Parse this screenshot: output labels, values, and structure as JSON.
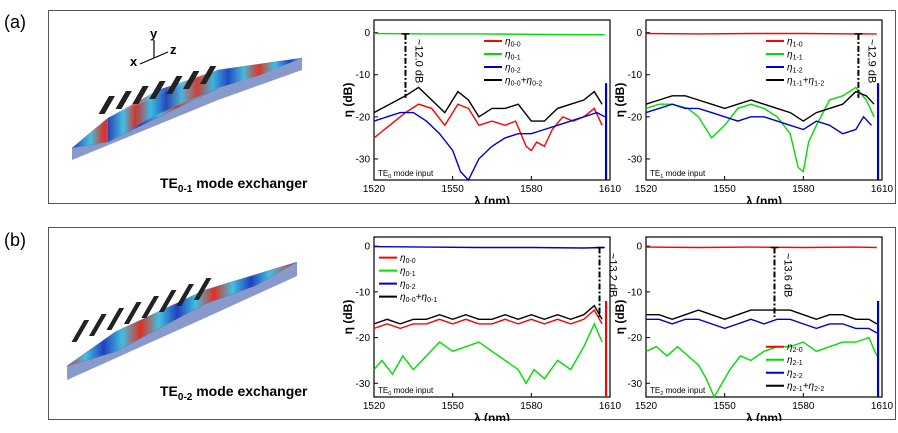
{
  "panels": [
    {
      "label": "(a)",
      "device_title": {
        "pre": "TE",
        "sub": "0-1",
        "post": " mode exchanger"
      }
    },
    {
      "label": "(b)",
      "device_title": {
        "pre": "TE",
        "sub": "0-2",
        "post": " mode exchanger"
      }
    }
  ],
  "axis_glyphs": {
    "x": "x",
    "y": "y",
    "z": "z"
  },
  "chart_data": [
    {
      "id": "a1",
      "type": "line",
      "xlabel": "λ (nm)",
      "ylabel": "η (dB)",
      "xlim": [
        1520,
        1610
      ],
      "ylim": [
        -35,
        3
      ],
      "xticks": [
        1520,
        1550,
        1580,
        1610
      ],
      "yticks": [
        0,
        -10,
        -20,
        -30
      ],
      "input_note": {
        "pre": "TE",
        "sub": "0",
        "post": " mode input"
      },
      "annotation": {
        "text": "~12.0 dB",
        "x": 1532
      },
      "legend": [
        {
          "name": "η",
          "sub": "0-0",
          "color": "#ff0000"
        },
        {
          "name": "η",
          "sub": "0-1",
          "color": "#00dd00"
        },
        {
          "name": "η",
          "sub": "0-2",
          "color": "#0000cc"
        },
        {
          "name": "η",
          "sub": "0-0",
          "plus": "+η",
          "sub2": "0-2",
          "color": "#000000"
        }
      ],
      "series": [
        {
          "color": "#00dd00",
          "x": [
            1520,
            1540,
            1560,
            1580,
            1600,
            1608
          ],
          "y": [
            -0.2,
            -0.3,
            -0.3,
            -0.4,
            -0.5,
            -0.5
          ]
        },
        {
          "color": "#ff0000",
          "x": [
            1520,
            1526,
            1532,
            1537,
            1542,
            1547,
            1552,
            1556,
            1560,
            1565,
            1570,
            1574,
            1578,
            1580,
            1582,
            1585,
            1588,
            1592,
            1596,
            1600,
            1604,
            1607
          ],
          "y": [
            -25,
            -22,
            -19,
            -17,
            -18,
            -22,
            -17,
            -18,
            -22,
            -21,
            -22,
            -21,
            -27,
            -28,
            -26,
            -27,
            -23,
            -20,
            -21,
            -20,
            -18,
            -22
          ]
        },
        {
          "color": "#0000cc",
          "x": [
            1520,
            1525,
            1530,
            1535,
            1540,
            1545,
            1550,
            1553,
            1556,
            1560,
            1565,
            1570,
            1575,
            1580,
            1585,
            1590,
            1595,
            1600,
            1605,
            1608
          ],
          "y": [
            -21,
            -20,
            -19,
            -19,
            -21,
            -24,
            -28,
            -33,
            -35,
            -30,
            -27,
            -25,
            -24,
            -24,
            -23,
            -22,
            -21,
            -20,
            -19,
            -20
          ]
        },
        {
          "color": "#000000",
          "x": [
            1520,
            1526,
            1532,
            1537,
            1542,
            1547,
            1552,
            1556,
            1560,
            1565,
            1570,
            1575,
            1580,
            1585,
            1590,
            1595,
            1600,
            1604,
            1607
          ],
          "y": [
            -19,
            -17,
            -15,
            -13,
            -16,
            -19,
            -14,
            -16,
            -20,
            -18,
            -18,
            -17,
            -21,
            -21,
            -18,
            -17,
            -16,
            -14,
            -17
          ]
        }
      ]
    },
    {
      "id": "a2",
      "type": "line",
      "xlabel": "λ (nm)",
      "ylabel": "η (dB)",
      "xlim": [
        1520,
        1610
      ],
      "ylim": [
        -35,
        3
      ],
      "xticks": [
        1520,
        1550,
        1580,
        1610
      ],
      "yticks": [
        0,
        -10,
        -20,
        -30
      ],
      "input_note": {
        "pre": "TE",
        "sub": "1",
        "post": " mode input"
      },
      "annotation": {
        "text": "~12.9 dB",
        "x": 1601
      },
      "legend": [
        {
          "name": "η",
          "sub": "1-0",
          "color": "#ff0000"
        },
        {
          "name": "η",
          "sub": "1-1",
          "color": "#00dd00"
        },
        {
          "name": "η",
          "sub": "1-2",
          "color": "#0000cc"
        },
        {
          "name": "η",
          "sub": "1-1",
          "plus": "+η",
          "sub2": "1-2",
          "color": "#000000"
        }
      ],
      "series": [
        {
          "color": "#ff0000",
          "x": [
            1520,
            1540,
            1560,
            1580,
            1600,
            1608
          ],
          "y": [
            -0.2,
            -0.3,
            -0.2,
            -0.2,
            -0.3,
            -0.3
          ]
        },
        {
          "color": "#00dd00",
          "x": [
            1520,
            1525,
            1530,
            1536,
            1540,
            1545,
            1550,
            1555,
            1560,
            1565,
            1570,
            1575,
            1578,
            1580,
            1582,
            1585,
            1590,
            1595,
            1600,
            1604,
            1607
          ],
          "y": [
            -18,
            -17,
            -17,
            -18,
            -20,
            -25,
            -22,
            -18,
            -17,
            -18,
            -20,
            -24,
            -32,
            -33,
            -26,
            -22,
            -16,
            -15,
            -13,
            -16,
            -20
          ]
        },
        {
          "color": "#0000cc",
          "x": [
            1520,
            1525,
            1530,
            1535,
            1540,
            1545,
            1550,
            1555,
            1560,
            1565,
            1570,
            1575,
            1580,
            1585,
            1590,
            1595,
            1600,
            1603,
            1606
          ],
          "y": [
            -19,
            -18,
            -17,
            -18,
            -18,
            -19,
            -20,
            -21,
            -20,
            -20,
            -21,
            -22,
            -23,
            -21,
            -22,
            -24,
            -23,
            -20,
            -22
          ]
        },
        {
          "color": "#000000",
          "x": [
            1520,
            1525,
            1530,
            1535,
            1540,
            1545,
            1550,
            1555,
            1560,
            1565,
            1570,
            1575,
            1580,
            1585,
            1590,
            1595,
            1600,
            1604,
            1607
          ],
          "y": [
            -17,
            -16,
            -15,
            -15,
            -16,
            -17,
            -18,
            -17,
            -16,
            -17,
            -18,
            -19,
            -21,
            -19,
            -18,
            -17,
            -14,
            -15,
            -17
          ]
        }
      ]
    },
    {
      "id": "b1",
      "type": "line",
      "xlabel": "λ (nm)",
      "ylabel": "η (dB)",
      "xlim": [
        1520,
        1610
      ],
      "ylim": [
        -33,
        2
      ],
      "xticks": [
        1520,
        1550,
        1580,
        1610
      ],
      "yticks": [
        0,
        -10,
        -20,
        -30
      ],
      "input_note": {
        "pre": "TE",
        "sub": "0",
        "post": " mode input"
      },
      "annotation": {
        "text": "~13.2 dB",
        "x": 1606
      },
      "legend": [
        {
          "name": "η",
          "sub": "0-0",
          "color": "#ff0000"
        },
        {
          "name": "η",
          "sub": "0-1",
          "color": "#00dd00"
        },
        {
          "name": "η",
          "sub": "0-2",
          "color": "#0000cc"
        },
        {
          "name": "η",
          "sub": "0-0",
          "plus": "+η",
          "sub2": "0-1",
          "color": "#000000"
        }
      ],
      "series": [
        {
          "color": "#0000cc",
          "x": [
            1520,
            1540,
            1560,
            1580,
            1600,
            1608
          ],
          "y": [
            -0.1,
            -0.2,
            -0.3,
            -0.3,
            -0.4,
            -0.3
          ]
        },
        {
          "color": "#00dd00",
          "x": [
            1520,
            1523,
            1527,
            1531,
            1535,
            1540,
            1545,
            1550,
            1555,
            1560,
            1565,
            1570,
            1575,
            1578,
            1581,
            1585,
            1590,
            1595,
            1600,
            1604,
            1607
          ],
          "y": [
            -27,
            -25,
            -28,
            -24,
            -27,
            -24,
            -21,
            -23,
            -22,
            -21,
            -23,
            -25,
            -27,
            -30,
            -27,
            -29,
            -25,
            -27,
            -22,
            -17,
            -21
          ]
        },
        {
          "color": "#ff0000",
          "x": [
            1520,
            1525,
            1530,
            1535,
            1540,
            1545,
            1550,
            1555,
            1560,
            1565,
            1570,
            1575,
            1580,
            1585,
            1590,
            1595,
            1600,
            1604,
            1607
          ],
          "y": [
            -18,
            -17,
            -18,
            -17,
            -17,
            -16,
            -17,
            -16,
            -17,
            -17,
            -16,
            -17,
            -16,
            -17,
            -16,
            -17,
            -16,
            -14,
            -17
          ]
        },
        {
          "color": "#000000",
          "x": [
            1520,
            1525,
            1530,
            1535,
            1540,
            1545,
            1550,
            1555,
            1560,
            1565,
            1570,
            1575,
            1580,
            1585,
            1590,
            1595,
            1600,
            1604,
            1607
          ],
          "y": [
            -17,
            -16,
            -17,
            -16,
            -16,
            -15,
            -16,
            -15,
            -16,
            -16,
            -15,
            -16,
            -15,
            -16,
            -15,
            -16,
            -15,
            -13,
            -16
          ]
        }
      ]
    },
    {
      "id": "b2",
      "type": "line",
      "xlabel": "λ (nm)",
      "ylabel": "η (dB)",
      "xlim": [
        1520,
        1610
      ],
      "ylim": [
        -33,
        2
      ],
      "xticks": [
        1520,
        1550,
        1580,
        1610
      ],
      "yticks": [
        0,
        -10,
        -20,
        -30
      ],
      "input_note": {
        "pre": "TE",
        "sub": "2",
        "post": " mode input"
      },
      "annotation": {
        "text": "~13.6 dB",
        "x": 1569
      },
      "legend": [
        {
          "name": "η",
          "sub": "2-0",
          "color": "#ff0000"
        },
        {
          "name": "η",
          "sub": "2-1",
          "color": "#00dd00"
        },
        {
          "name": "η",
          "sub": "2-2",
          "color": "#0000cc"
        },
        {
          "name": "η",
          "sub": "2-1",
          "plus": "+η",
          "sub2": "2-2",
          "color": "#000000"
        }
      ],
      "series": [
        {
          "color": "#ff0000",
          "x": [
            1520,
            1540,
            1560,
            1580,
            1600,
            1608
          ],
          "y": [
            -0.2,
            -0.3,
            -0.2,
            -0.3,
            -0.2,
            -0.3
          ]
        },
        {
          "color": "#00dd00",
          "x": [
            1520,
            1524,
            1528,
            1532,
            1536,
            1540,
            1543,
            1546,
            1549,
            1552,
            1556,
            1560,
            1565,
            1570,
            1575,
            1580,
            1585,
            1590,
            1595,
            1600,
            1605,
            1608
          ],
          "y": [
            -23,
            -22,
            -24,
            -22,
            -24,
            -26,
            -29,
            -33,
            -30,
            -27,
            -24,
            -25,
            -23,
            -22,
            -22,
            -21,
            -23,
            -22,
            -21,
            -21,
            -20,
            -24
          ]
        },
        {
          "color": "#0000cc",
          "x": [
            1520,
            1525,
            1530,
            1535,
            1540,
            1545,
            1550,
            1555,
            1560,
            1565,
            1570,
            1575,
            1580,
            1585,
            1590,
            1595,
            1600,
            1605,
            1608
          ],
          "y": [
            -16,
            -16,
            -17,
            -16,
            -16,
            -17,
            -18,
            -17,
            -16,
            -17,
            -16,
            -16,
            -17,
            -18,
            -17,
            -17,
            -18,
            -18,
            -19
          ]
        },
        {
          "color": "#000000",
          "x": [
            1520,
            1525,
            1530,
            1535,
            1540,
            1545,
            1550,
            1555,
            1560,
            1565,
            1570,
            1575,
            1580,
            1585,
            1590,
            1595,
            1600,
            1605,
            1608
          ],
          "y": [
            -15,
            -15,
            -16,
            -15,
            -14,
            -15,
            -16,
            -15,
            -14,
            -14,
            -14,
            -14,
            -15,
            -16,
            -15,
            -15,
            -16,
            -16,
            -17
          ]
        }
      ]
    }
  ]
}
